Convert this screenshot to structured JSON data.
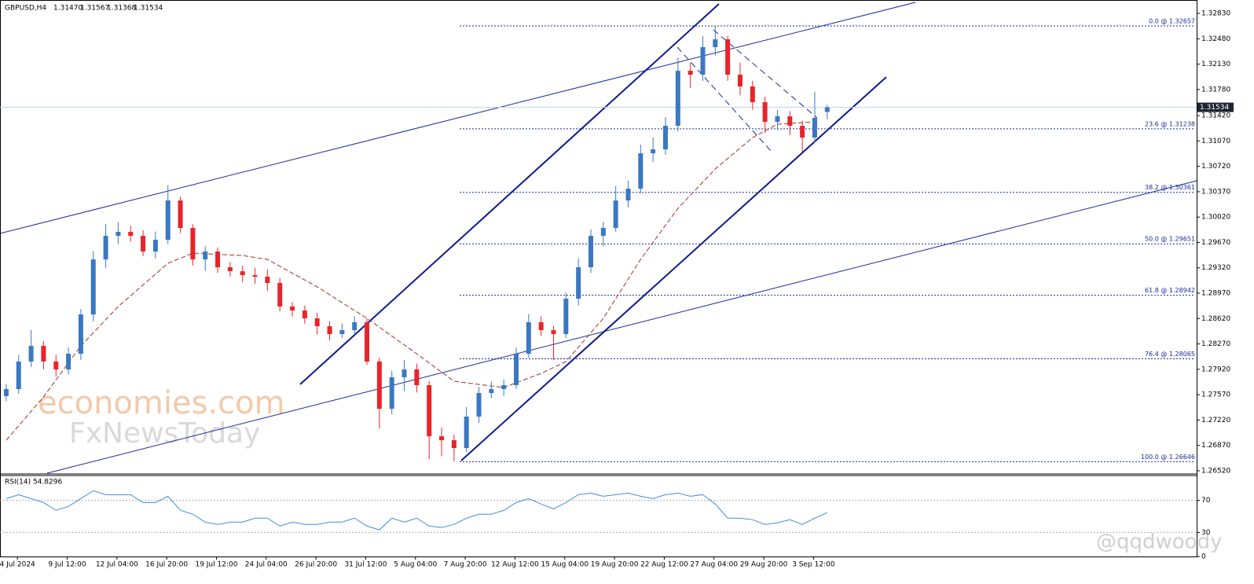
{
  "chart_data": [
    {
      "type": "candlestick",
      "symbol": "GBPUSD,H4",
      "ohlc_text": [
        "1.31470",
        "1.31567",
        "1.31368",
        "1.31534"
      ],
      "open": [
        1.2755,
        1.27647,
        1.28027,
        1.28243,
        1.28027,
        1.27918,
        1.28135,
        1.28677,
        1.29436,
        1.29761,
        1.29816,
        1.29761,
        1.29545,
        1.29707,
        1.30249,
        1.2987,
        1.29436,
        1.29545,
        1.29328,
        1.29273,
        1.29219,
        1.29198,
        1.29111,
        1.28786,
        1.28731,
        1.28623,
        1.28514,
        1.28406,
        1.2846,
        1.28569,
        1.28027,
        1.27376,
        1.2781,
        1.27918,
        1.27701,
        1.26996,
        1.26942,
        1.26834,
        1.27268,
        1.27593,
        1.27647,
        1.27701,
        1.28135,
        1.28569,
        1.2846,
        1.28406,
        1.28894,
        1.29328,
        1.29761,
        1.2987,
        1.30249,
        1.30412,
        1.309,
        1.30954,
        1.31279,
        1.32038,
        1.31984,
        1.32364,
        1.32472,
        1.31984,
        1.31822,
        1.31605,
        1.31334,
        1.3141,
        1.31279,
        1.31117,
        1.3147
      ],
      "high": [
        1.2772,
        1.2812,
        1.2846,
        1.2831,
        1.2812,
        1.2822,
        1.2875,
        1.2955,
        1.2992,
        1.2995,
        1.299,
        1.2984,
        1.2982,
        1.3046,
        1.303,
        1.2992,
        1.2962,
        1.296,
        1.294,
        1.2935,
        1.2932,
        1.293,
        1.2918,
        1.2885,
        1.288,
        1.287,
        1.2858,
        1.2855,
        1.2865,
        1.2862,
        1.2808,
        1.279,
        1.2805,
        1.28,
        1.2776,
        1.2712,
        1.2702,
        1.274,
        1.2768,
        1.2775,
        1.2778,
        1.2822,
        1.2868,
        1.2865,
        1.2852,
        1.2898,
        1.2945,
        1.2985,
        1.2995,
        1.3045,
        1.3052,
        1.3102,
        1.3112,
        1.314,
        1.3222,
        1.3215,
        1.3252,
        1.3266,
        1.3252,
        1.3215,
        1.319,
        1.3168,
        1.315,
        1.3148,
        1.3135,
        1.3175,
        1.31567
      ],
      "low": [
        1.2748,
        1.2758,
        1.2795,
        1.2792,
        1.2782,
        1.2785,
        1.2805,
        1.2858,
        1.2932,
        1.2965,
        1.2968,
        1.2948,
        1.2945,
        1.2965,
        1.298,
        1.2935,
        1.2928,
        1.2925,
        1.292,
        1.2912,
        1.291,
        1.29,
        1.2872,
        1.2865,
        1.2855,
        1.284,
        1.2832,
        1.2835,
        1.284,
        1.2798,
        1.271,
        1.273,
        1.2762,
        1.276,
        1.2668,
        1.2672,
        1.2665,
        1.2678,
        1.2718,
        1.2752,
        1.2755,
        1.2765,
        1.2808,
        1.2838,
        1.2805,
        1.2835,
        1.288,
        1.2925,
        1.2962,
        1.2982,
        1.3015,
        1.3035,
        1.3078,
        1.3088,
        1.312,
        1.318,
        1.319,
        1.3225,
        1.319,
        1.317,
        1.315,
        1.3118,
        1.3122,
        1.3115,
        1.3092,
        1.3105,
        1.31368
      ],
      "close": [
        1.27647,
        1.28027,
        1.28243,
        1.28027,
        1.27918,
        1.28135,
        1.28677,
        1.29436,
        1.29761,
        1.29816,
        1.29761,
        1.29545,
        1.29707,
        1.30249,
        1.2987,
        1.29436,
        1.29545,
        1.29328,
        1.29273,
        1.29219,
        1.29198,
        1.29111,
        1.28786,
        1.28731,
        1.28623,
        1.28514,
        1.28406,
        1.2846,
        1.28569,
        1.28027,
        1.27376,
        1.2781,
        1.27918,
        1.27701,
        1.26996,
        1.26942,
        1.26834,
        1.27268,
        1.27593,
        1.27647,
        1.27701,
        1.28135,
        1.28569,
        1.2846,
        1.28406,
        1.28894,
        1.29328,
        1.29761,
        1.2987,
        1.30249,
        1.30412,
        1.309,
        1.30954,
        1.31279,
        1.32038,
        1.31984,
        1.32364,
        1.32472,
        1.31984,
        1.31822,
        1.31605,
        1.31334,
        1.3141,
        1.31279,
        1.31117,
        1.31388,
        1.31534
      ],
      "up_color": "#3a78c2",
      "down_color": "#e8242a",
      "ma": {
        "color": "#a0302a",
        "x": [
          0,
          3,
          6,
          9,
          13,
          15,
          19,
          21,
          25,
          29,
          33,
          36,
          40,
          43,
          45,
          48,
          51,
          54,
          57,
          60,
          62,
          65
        ],
        "values": [
          1.26942,
          1.27539,
          1.28243,
          1.28786,
          1.29382,
          1.29523,
          1.2949,
          1.29436,
          1.29057,
          1.28623,
          1.28135,
          1.27755,
          1.27669,
          1.27864,
          1.28027,
          1.28623,
          1.29436,
          1.30141,
          1.30683,
          1.31117,
          1.31301,
          1.31334
        ]
      },
      "fib_levels": [
        {
          "value": 1.32657,
          "label": "0.0 @ 1.32657"
        },
        {
          "value": 1.31238,
          "label": "23.6 @ 1.31238"
        },
        {
          "value": 1.30361,
          "label": "38.2 @ 1.30361"
        },
        {
          "value": 1.29651,
          "label": "50.0 @ 1.29651"
        },
        {
          "value": 1.28942,
          "label": "61.8 @ 1.28942"
        },
        {
          "value": 1.28065,
          "label": "76.4 @ 1.28065"
        },
        {
          "value": 1.26646,
          "label": "100.0 @ 1.26646"
        }
      ],
      "last_price": {
        "value": 1.31534,
        "label": "1.31534"
      },
      "ylim": [
        1.26487,
        1.32993
      ],
      "yticks": [
        {
          "value": 1.3283,
          "label": "1.32830"
        },
        {
          "value": 1.3248,
          "label": "1.32480"
        },
        {
          "value": 1.3213,
          "label": "1.32130"
        },
        {
          "value": 1.3178,
          "label": "1.31780"
        },
        {
          "value": 1.3142,
          "label": "1.31420"
        },
        {
          "value": 1.3107,
          "label": "1.31070"
        },
        {
          "value": 1.3072,
          "label": "1.30720"
        },
        {
          "value": 1.3037,
          "label": "1.30370"
        },
        {
          "value": 1.3002,
          "label": "1.30020"
        },
        {
          "value": 1.2967,
          "label": "1.29670"
        },
        {
          "value": 1.2932,
          "label": "1.29320"
        },
        {
          "value": 1.2897,
          "label": "1.28970"
        },
        {
          "value": 1.2862,
          "label": "1.28620"
        },
        {
          "value": 1.2827,
          "label": "1.28270"
        },
        {
          "value": 1.2792,
          "label": "1.27920"
        },
        {
          "value": 1.2757,
          "label": "1.27570"
        },
        {
          "value": 1.2722,
          "label": "1.27220"
        },
        {
          "value": 1.2687,
          "label": "1.26870"
        },
        {
          "value": 1.2652,
          "label": "1.26520"
        }
      ],
      "xlim": [
        -0.5,
        95.7
      ],
      "xticks": [
        {
          "value": 0.9,
          "label": "4 Jul 2024"
        },
        {
          "value": 4.9,
          "label": "9 Jul 12:00"
        },
        {
          "value": 8.9,
          "label": "12 Jul 04:00"
        },
        {
          "value": 12.9,
          "label": "16 Jul 20:00"
        },
        {
          "value": 16.9,
          "label": "19 Jul 12:00"
        },
        {
          "value": 20.9,
          "label": "24 Jul 04:00"
        },
        {
          "value": 24.9,
          "label": "26 Jul 20:00"
        },
        {
          "value": 28.9,
          "label": "31 Jul 12:00"
        },
        {
          "value": 32.9,
          "label": "5 Aug 04:00"
        },
        {
          "value": 36.9,
          "label": "7 Aug 20:00"
        },
        {
          "value": 40.9,
          "label": "12 Aug 12:00"
        },
        {
          "value": 44.9,
          "label": "15 Aug 04:00"
        },
        {
          "value": 48.9,
          "label": "19 Aug 20:00"
        },
        {
          "value": 52.9,
          "label": "22 Aug 12:00"
        },
        {
          "value": 56.9,
          "label": "27 Aug 04:00"
        },
        {
          "value": 60.9,
          "label": "29 Aug 20:00"
        },
        {
          "value": 64.9,
          "label": "3 Sep 12:00"
        }
      ]
    },
    {
      "type": "line",
      "title": "RSI(14) 54.8296",
      "color": "#3d8fe0",
      "values": [
        72.2,
        77.1,
        72.2,
        67.3,
        57.6,
        62.4,
        72.2,
        82.0,
        77.1,
        77.1,
        77.1,
        67.3,
        67.3,
        75.1,
        57.6,
        52.7,
        42.9,
        40.0,
        42.9,
        42.9,
        47.8,
        47.8,
        38.0,
        42.9,
        40.0,
        40.0,
        42.9,
        42.9,
        47.8,
        38.0,
        33.2,
        47.8,
        42.9,
        47.8,
        38.0,
        36.1,
        40.0,
        47.8,
        52.7,
        52.7,
        57.6,
        67.3,
        72.2,
        65.4,
        59.5,
        67.3,
        77.1,
        79.0,
        75.1,
        77.1,
        79.0,
        75.1,
        72.2,
        77.1,
        79.0,
        75.1,
        77.1,
        65.4,
        47.8,
        47.8,
        45.9,
        40.0,
        42.0,
        45.9,
        40.0,
        47.8,
        54.8
      ],
      "ylim": [
        0,
        100
      ],
      "yticks": [
        0,
        30,
        70
      ],
      "levels": [
        30,
        70
      ]
    }
  ],
  "watermarks": [
    "economies.com",
    "FxNewsToday",
    "@qqdwoody"
  ]
}
